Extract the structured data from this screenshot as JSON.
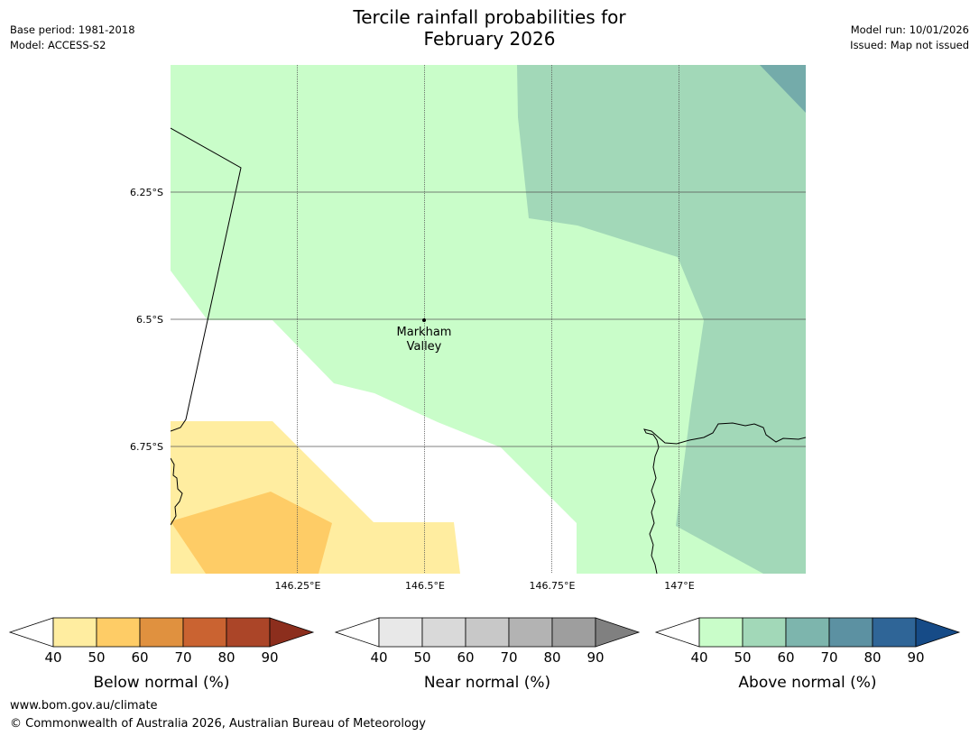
{
  "title_line1": "Tercile rainfall probabilities for",
  "title_line2": "February 2026",
  "meta_left": {
    "base_period": "Base period: 1981-2018",
    "model": "Model: ACCESS-S2"
  },
  "meta_right": {
    "model_run": "Model run: 10/01/2026",
    "issued": "Issued: Map not issued"
  },
  "map": {
    "lat_labels": [
      "6.25°S",
      "6.5°S",
      "6.75°S"
    ],
    "lon_labels": [
      "146.25°E",
      "146.5°E",
      "146.75°E",
      "147°E"
    ],
    "place": {
      "name_line1": "Markham",
      "name_line2": "Valley"
    }
  },
  "legends": [
    {
      "label": "Below normal (%)",
      "ticks": [
        "40",
        "50",
        "60",
        "70",
        "80",
        "90"
      ],
      "colors": [
        "#ffeda0",
        "#fecc66",
        "#e0913f",
        "#ca6331",
        "#ab4528",
        "#8c2e1d"
      ]
    },
    {
      "label": "Near normal (%)",
      "ticks": [
        "40",
        "50",
        "60",
        "70",
        "80",
        "90"
      ],
      "colors": [
        "#e8e8e8",
        "#d9d9d9",
        "#c8c8c8",
        "#b3b3b3",
        "#9e9e9e",
        "#808080"
      ]
    },
    {
      "label": "Above normal (%)",
      "ticks": [
        "40",
        "50",
        "60",
        "70",
        "80",
        "90"
      ],
      "colors": [
        "#c9fdc9",
        "#a2d8b8",
        "#7db5ad",
        "#5c91a2",
        "#2f6597",
        "#164b87"
      ]
    }
  ],
  "footer": {
    "url": "www.bom.gov.au/climate",
    "copyright": "© Commonwealth of Australia 2026, Australian Bureau of Meteorology"
  }
}
